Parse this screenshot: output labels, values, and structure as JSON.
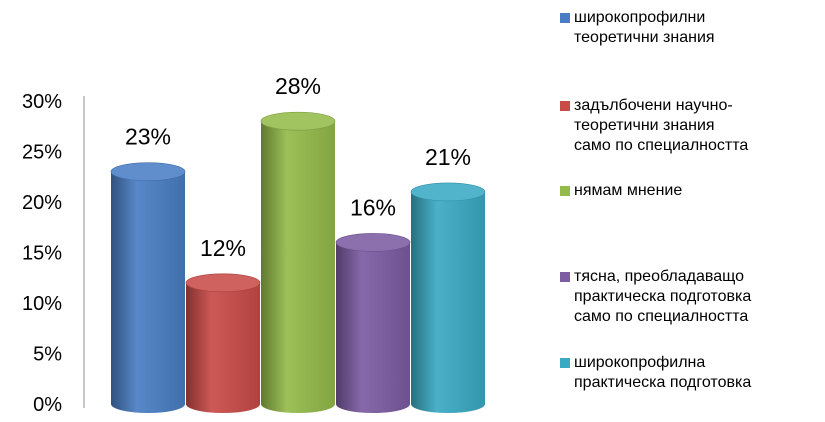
{
  "chart_data": {
    "type": "bar",
    "style": "3d-cylinder",
    "title": "",
    "ylim": [
      0,
      30
    ],
    "y_ticks": [
      "0%",
      "5%",
      "10%",
      "15%",
      "20%",
      "25%",
      "30%"
    ],
    "grid": false,
    "legend_position": "right",
    "categories": [
      "широкопрофилни теоретични знания",
      "задълбочени научно-теоретични знания само по специалността",
      "нямам мнение",
      "тясна, преобладаващо практическа подготовка само по специалността",
      "широкопрофилна практическа подготовка"
    ],
    "values": [
      23,
      12,
      28,
      16,
      21
    ],
    "data_labels": [
      "23%",
      "12%",
      "28%",
      "16%",
      "21%"
    ],
    "colors": [
      "#4a7ec4",
      "#c94b48",
      "#94bb4a",
      "#7c5ca3",
      "#3aaac4"
    ]
  },
  "legend": [
    {
      "lines": [
        "широкопрофилни",
        "теоретични знания"
      ],
      "color": "#4a7ec4"
    },
    {
      "lines": [
        "задълбочени научно-",
        "теоретични знания",
        "само по специалността"
      ],
      "color": "#c94b48"
    },
    {
      "lines": [
        "нямам мнение"
      ],
      "color": "#94bb4a"
    },
    {
      "lines": [
        "тясна, преобладаващо",
        "практическа подготовка",
        "само по специалността"
      ],
      "color": "#7c5ca3"
    },
    {
      "lines": [
        "широкопрофилна",
        "практическа подготовка"
      ],
      "color": "#3aaac4"
    }
  ]
}
